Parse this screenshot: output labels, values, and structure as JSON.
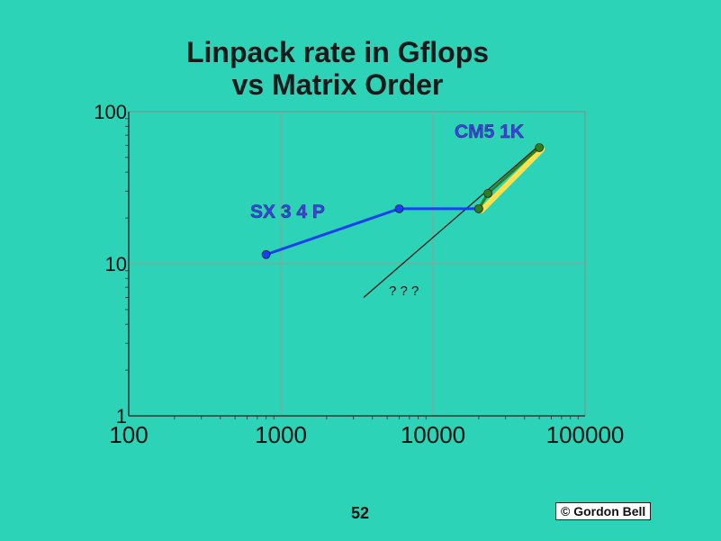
{
  "chart_data": {
    "type": "line",
    "title": "Linpack rate in Gflops",
    "subtitle": "vs Matrix Order",
    "x_scale": "log",
    "y_scale": "log",
    "xlim": [
      100,
      100000
    ],
    "ylim": [
      1,
      100
    ],
    "x_ticks": [
      "100",
      "1000",
      "10000",
      "100000"
    ],
    "y_ticks": [
      "100",
      "10",
      "1"
    ],
    "grid": true,
    "series": [
      {
        "name": "SX 3  4 P",
        "color": "#1a3ff0",
        "points": [
          [
            800,
            11.5
          ],
          [
            6000,
            23
          ],
          [
            20000,
            23
          ]
        ]
      },
      {
        "name": "CM5 1K",
        "color": "#2e7d1e",
        "points": [
          [
            20000,
            23
          ],
          [
            23000,
            29
          ],
          [
            50000,
            58
          ]
        ]
      }
    ],
    "trend_line": {
      "color": "#111111",
      "points": [
        [
          3500,
          6
        ],
        [
          50000,
          60
        ]
      ]
    },
    "highlight_band": {
      "color": "#ffe24a",
      "points": [
        [
          20000,
          23
        ],
        [
          50000,
          58
        ]
      ]
    },
    "annotations": [
      "? ? ?"
    ]
  },
  "page": {
    "number": "52",
    "credit": "© Gordon Bell"
  }
}
